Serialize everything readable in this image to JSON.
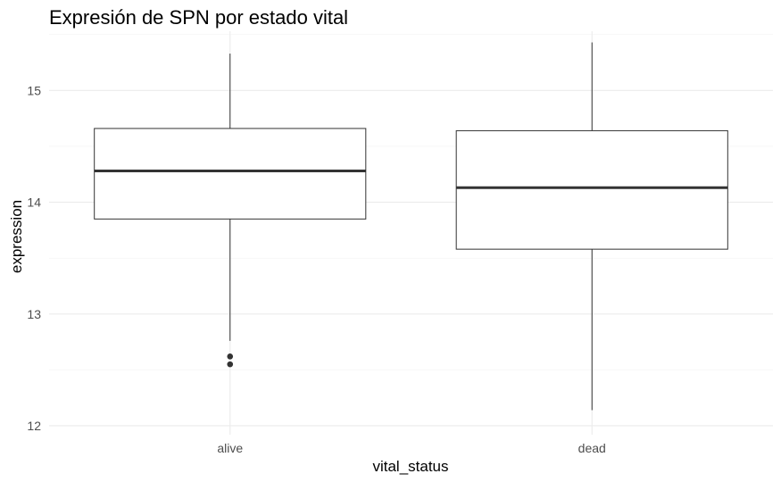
{
  "chart_data": {
    "type": "boxplot",
    "title": "Expresión de SPN por estado vital",
    "xlabel": "vital_status",
    "ylabel": "expression",
    "ylim": [
      11.92,
      15.53
    ],
    "yticks": [
      12,
      13,
      14,
      15
    ],
    "grid": true,
    "legend": "none",
    "categories": [
      "alive",
      "dead"
    ],
    "boxes": [
      {
        "category": "alive",
        "whisker_low": 12.76,
        "q1": 13.85,
        "median": 14.28,
        "q3": 14.66,
        "whisker_high": 15.33,
        "outliers": [
          12.62,
          12.55
        ]
      },
      {
        "category": "dead",
        "whisker_low": 12.14,
        "q1": 13.58,
        "median": 14.13,
        "q3": 14.64,
        "whisker_high": 15.43,
        "outliers": []
      }
    ],
    "colors": {
      "box_fill": "#ffffff",
      "box_stroke": "#333333",
      "outlier": "#333333"
    }
  }
}
